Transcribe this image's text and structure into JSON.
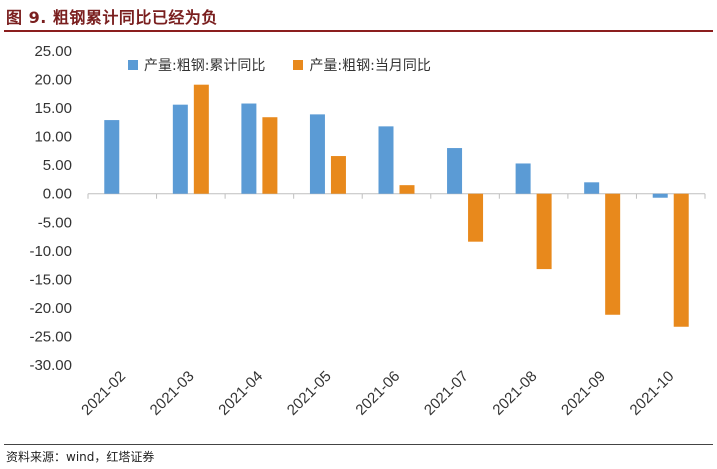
{
  "title": "图 9. 粗钢累计同比已经为负",
  "source": "资料来源：wind，红塔证券",
  "chart_data": {
    "type": "bar",
    "categories": [
      "2021-02",
      "2021-03",
      "2021-04",
      "2021-05",
      "2021-06",
      "2021-07",
      "2021-08",
      "2021-09",
      "2021-10"
    ],
    "series": [
      {
        "name": "产量:粗钢:累计同比",
        "color": "#5b9bd5",
        "values": [
          12.9,
          15.6,
          15.8,
          13.9,
          11.8,
          8.0,
          5.3,
          2.0,
          -0.7
        ]
      },
      {
        "name": "产量:粗钢:当月同比",
        "color": "#e8891c",
        "values": [
          null,
          19.1,
          13.4,
          6.6,
          1.5,
          -8.4,
          -13.2,
          -21.2,
          -23.3
        ]
      }
    ],
    "yticks": [
      "25.00",
      "20.00",
      "15.00",
      "10.00",
      "5.00",
      "0.00",
      "-5.00",
      "-10.00",
      "-15.00",
      "-20.00",
      "-25.00",
      "-30.00"
    ],
    "ylim": [
      -30,
      25
    ],
    "legend_position": "top-left"
  }
}
